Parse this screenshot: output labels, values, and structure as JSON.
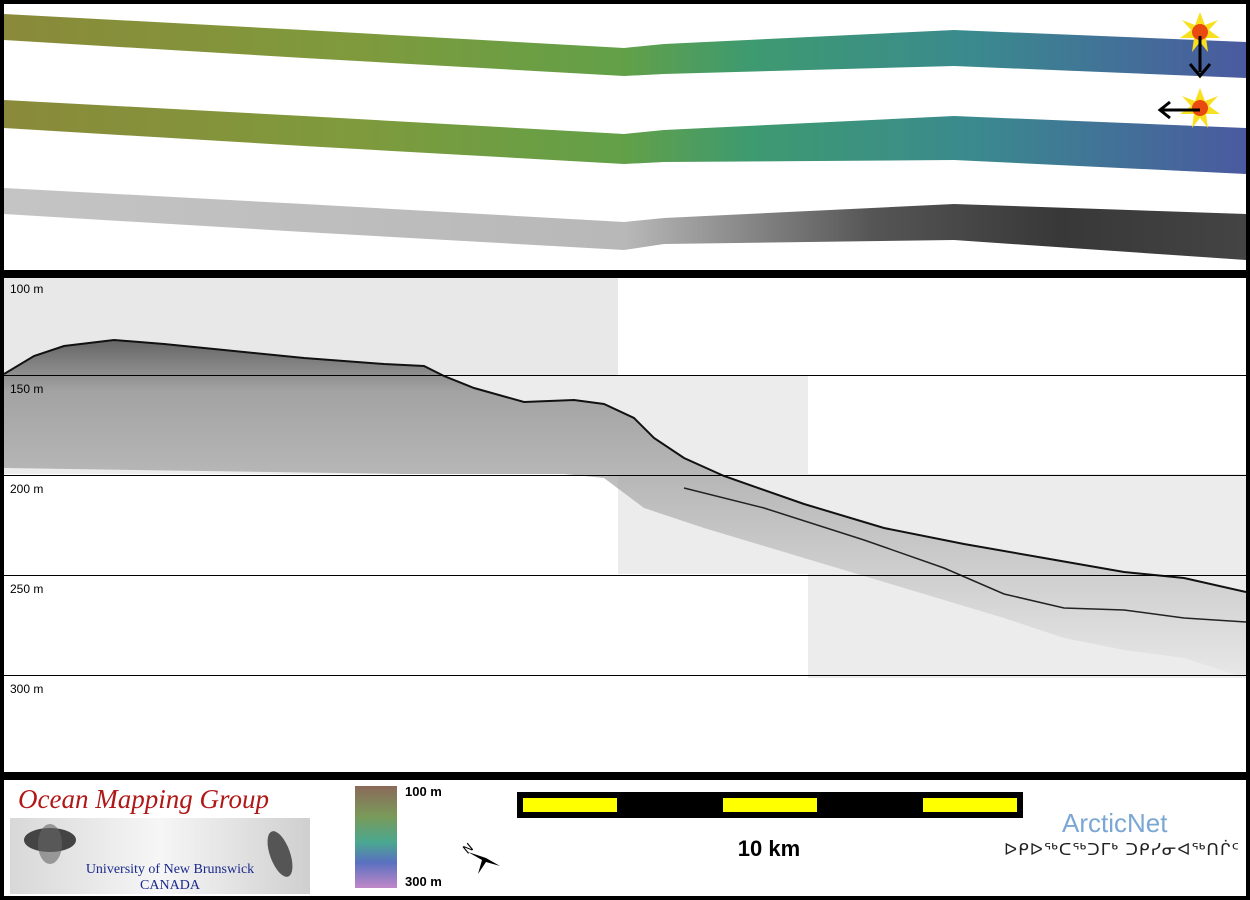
{
  "profile": {
    "depth_labels": [
      "100 m",
      "150 m",
      "200 m",
      "250 m",
      "300 m"
    ]
  },
  "legend": {
    "colorbar_top": "100 m",
    "colorbar_bottom": "300 m",
    "scale_bar": "10 km"
  },
  "logos": {
    "omg_title": "Ocean Mapping Group",
    "omg_line1": "University of New Brunswick",
    "omg_line2": "CANADA",
    "arcticnet_title": "ArcticNet",
    "arcticnet_syllabics": "ᐅᑭᐅᖅᑕᖅᑐᒥᒃ ᑐᑭᓯᓂᐊᖅᑎᒌᑦ"
  },
  "icons": {
    "sun_a": "sun-illumination-icon",
    "sun_b": "sun-illumination-icon",
    "arrow_down": "arrow-down-icon",
    "arrow_left": "arrow-left-icon",
    "north_arrow": "north-arrow-icon"
  },
  "colors": {
    "colorbar_top": "#8a6a5a",
    "colorbar_bottom": "#c088c8",
    "scale_yellow": "#ffff00",
    "omg_red": "#b01818",
    "omg_blue": "#1a2a8c",
    "arcticnet_blue": "#7ba7d4"
  }
}
